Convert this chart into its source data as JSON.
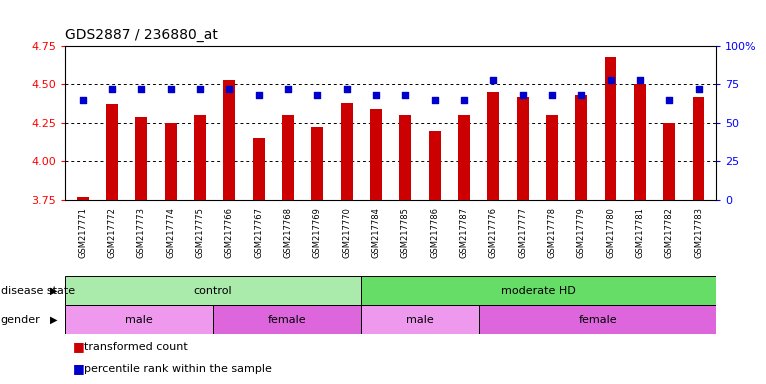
{
  "title": "GDS2887 / 236880_at",
  "samples": [
    "GSM217771",
    "GSM217772",
    "GSM217773",
    "GSM217774",
    "GSM217775",
    "GSM217766",
    "GSM217767",
    "GSM217768",
    "GSM217769",
    "GSM217770",
    "GSM217784",
    "GSM217785",
    "GSM217786",
    "GSM217787",
    "GSM217776",
    "GSM217777",
    "GSM217778",
    "GSM217779",
    "GSM217780",
    "GSM217781",
    "GSM217782",
    "GSM217783"
  ],
  "bar_values": [
    3.77,
    4.37,
    4.29,
    4.25,
    4.3,
    4.53,
    4.15,
    4.3,
    4.22,
    4.38,
    4.34,
    4.3,
    4.2,
    4.3,
    4.45,
    4.42,
    4.3,
    4.43,
    4.68,
    4.5,
    4.25,
    4.42
  ],
  "percentile_values": [
    65,
    72,
    72,
    72,
    72,
    72,
    68,
    72,
    68,
    72,
    68,
    68,
    65,
    65,
    78,
    68,
    68,
    68,
    78,
    78,
    65,
    72
  ],
  "bar_color": "#cc0000",
  "dot_color": "#0000cc",
  "ylim_left": [
    3.75,
    4.75
  ],
  "ylim_right": [
    0,
    100
  ],
  "yticks_left": [
    3.75,
    4.0,
    4.25,
    4.5,
    4.75
  ],
  "yticks_right": [
    0,
    25,
    50,
    75,
    100
  ],
  "ytick_labels_right": [
    "0",
    "25",
    "50",
    "75",
    "100%"
  ],
  "hlines": [
    4.0,
    4.25,
    4.5
  ],
  "disease_state_groups": [
    {
      "label": "control",
      "start": 0,
      "end": 10,
      "color": "#aaeaaa"
    },
    {
      "label": "moderate HD",
      "start": 10,
      "end": 22,
      "color": "#66dd66"
    }
  ],
  "gender_groups": [
    {
      "label": "male",
      "start": 0,
      "end": 5,
      "color": "#ee99ee"
    },
    {
      "label": "female",
      "start": 5,
      "end": 10,
      "color": "#dd66dd"
    },
    {
      "label": "male",
      "start": 10,
      "end": 14,
      "color": "#ee99ee"
    },
    {
      "label": "female",
      "start": 14,
      "end": 22,
      "color": "#dd66dd"
    }
  ],
  "row_labels": [
    "disease state",
    "gender"
  ],
  "background_color": "#ffffff",
  "bar_baseline": 3.75,
  "bar_width": 0.4
}
